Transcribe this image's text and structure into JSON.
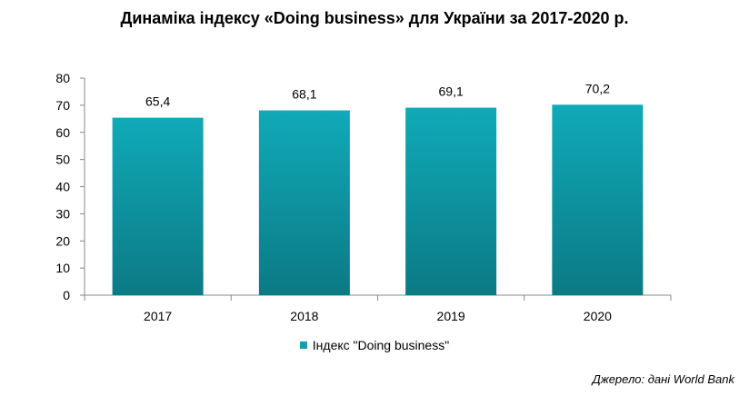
{
  "chart_data": {
    "type": "bar",
    "title": "Динаміка індексу «Doing business» для України за 2017-2020 р.",
    "categories": [
      "2017",
      "2018",
      "2019",
      "2020"
    ],
    "series": [
      {
        "name": "Індекс \"Doing business\"",
        "values": [
          65.4,
          68.1,
          69.1,
          70.2
        ]
      }
    ],
    "data_labels": [
      "65,4",
      "68,1",
      "69,1",
      "70,2"
    ],
    "ylim": [
      0,
      80
    ],
    "yticks": [
      0,
      10,
      20,
      30,
      40,
      50,
      60,
      70,
      80
    ],
    "grid": false,
    "legend_position": "bottom",
    "bar_color_top": "#10aab8",
    "bar_color_bottom": "#0b7a85",
    "swatch_color": "#10a0ad"
  },
  "source_note": "Джерело: дані World Bank"
}
